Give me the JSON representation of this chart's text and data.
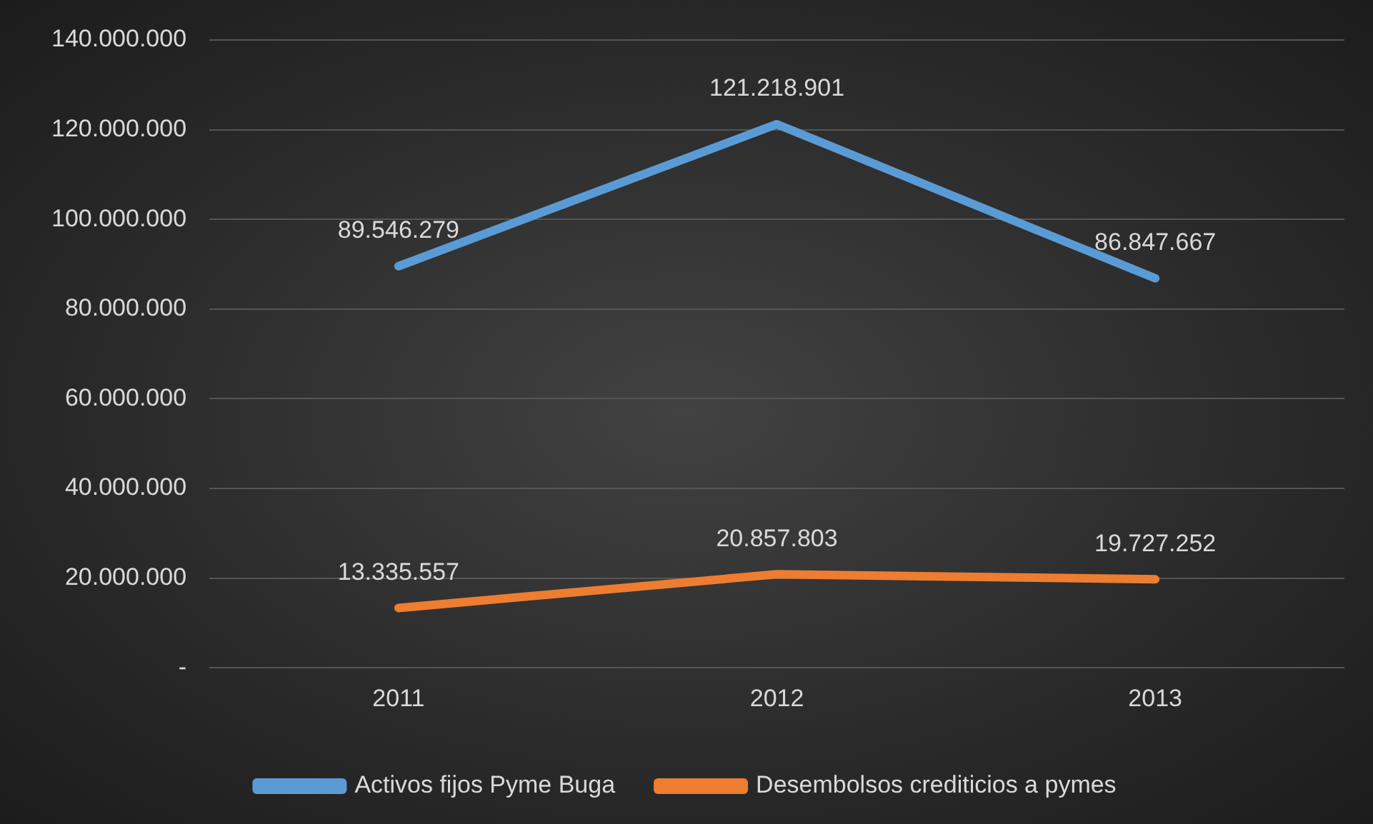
{
  "chart_data": {
    "type": "line",
    "categories": [
      "2011",
      "2012",
      "2013"
    ],
    "series": [
      {
        "name": "Activos fijos Pyme Buga",
        "color": "#5b9bd5",
        "values": [
          89546279,
          121218901,
          86847667
        ],
        "value_labels": [
          "89.546.279",
          "121.218.901",
          "86.847.667"
        ]
      },
      {
        "name": "Desembolsos crediticios a pymes",
        "color": "#ed7d31",
        "values": [
          13335557,
          20857803,
          19727252
        ],
        "value_labels": [
          "13.335.557",
          "20.857.803",
          "19.727.252"
        ]
      }
    ],
    "ylim": [
      0,
      140000000
    ],
    "yticks": [
      {
        "value": 0,
        "label": "-"
      },
      {
        "value": 20000000,
        "label": "20.000.000"
      },
      {
        "value": 40000000,
        "label": "40.000.000"
      },
      {
        "value": 60000000,
        "label": "60.000.000"
      },
      {
        "value": 80000000,
        "label": "80.000.000"
      },
      {
        "value": 100000000,
        "label": "100.000.000"
      },
      {
        "value": 120000000,
        "label": "120.000.000"
      },
      {
        "value": 140000000,
        "label": "140.000.000"
      }
    ],
    "grid": "y",
    "legend": "bottom",
    "marker": "none",
    "line_style": "solid"
  }
}
